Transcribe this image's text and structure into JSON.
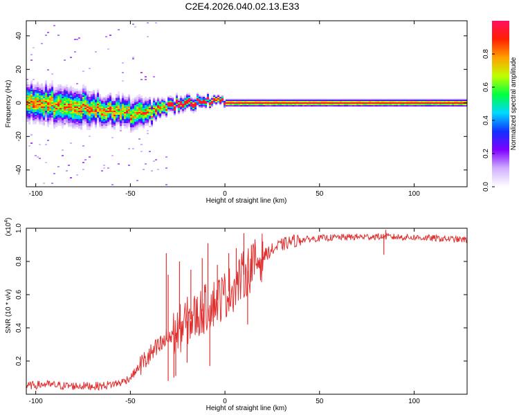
{
  "title": "C2E4.2026.040.02.13.E33",
  "chart_data": [
    {
      "type": "heatmap",
      "title": "C2E4.2026.040.02.13.E33",
      "xlabel": "Height of straight line (km)",
      "ylabel": "Frequency (Hz)",
      "xlim": [
        -105,
        128
      ],
      "ylim": [
        -50,
        49
      ],
      "xticks": [
        -100,
        -50,
        0,
        50,
        100
      ],
      "yticks": [
        -40,
        -20,
        0,
        20,
        40
      ],
      "xtick_labels": [
        "-100",
        "-50",
        "0",
        "50",
        "100"
      ],
      "ytick_labels": [
        "-40",
        "-20",
        "0",
        "20",
        "40"
      ],
      "colorbar": {
        "label": "Normalized spectral amplitude",
        "range": [
          0.0,
          1.0
        ],
        "ticks": [
          0.0,
          0.2,
          0.4,
          0.6,
          0.8
        ],
        "tick_labels": [
          "0.0",
          "0.2",
          "0.4",
          "0.6",
          "0.8"
        ],
        "colors": [
          "#ffffff",
          "#d0b0ff",
          "#8000ff",
          "#1030ff",
          "#00d8ff",
          "#00ff40",
          "#c0ff00",
          "#ffa000",
          "#ff2000",
          "#ff1060"
        ]
      },
      "ridge": {
        "x": [
          -105,
          -95,
          -85,
          -75,
          -65,
          -55,
          -45,
          -38,
          -30,
          -20,
          -10,
          0,
          10,
          20,
          50,
          80,
          128
        ],
        "frequency": [
          0,
          0,
          -2,
          -3,
          -4,
          -5,
          -7,
          -5,
          -2,
          0,
          1,
          0,
          0,
          0,
          0,
          0,
          0
        ],
        "spread": [
          5,
          5,
          5,
          5,
          4,
          4,
          4,
          3,
          2,
          2,
          1.5,
          1,
          1,
          1,
          1,
          1,
          1
        ]
      }
    },
    {
      "type": "line",
      "xlabel": "Height of straight line (km)",
      "ylabel": "SNR (10 * v/v)",
      "y_multiplier": "(x10",
      "y_multiplier_exp": "4",
      "xlim": [
        -105,
        128
      ],
      "ylim": [
        0,
        1.0
      ],
      "xticks": [
        -100,
        -50,
        0,
        50,
        100
      ],
      "yticks": [
        0.2,
        0.4,
        0.6,
        0.8,
        1.0
      ],
      "xtick_labels": [
        "-100",
        "-50",
        "0",
        "50",
        "100"
      ],
      "ytick_labels": [
        "0.2",
        "0.4",
        "0.6",
        "0.8",
        "1.0"
      ],
      "series": [
        {
          "name": "SNR",
          "color": "#e03030",
          "x": [
            -105,
            -95,
            -85,
            -75,
            -65,
            -55,
            -50,
            -45,
            -40,
            -35,
            -30,
            -25,
            -20,
            -15,
            -10,
            -5,
            0,
            5,
            10,
            15,
            20,
            25,
            30,
            35,
            40,
            50,
            60,
            80,
            100,
            128
          ],
          "y": [
            0.05,
            0.06,
            0.05,
            0.05,
            0.05,
            0.07,
            0.1,
            0.17,
            0.23,
            0.28,
            0.34,
            0.38,
            0.44,
            0.47,
            0.52,
            0.56,
            0.6,
            0.65,
            0.72,
            0.78,
            0.83,
            0.87,
            0.9,
            0.92,
            0.93,
            0.94,
            0.945,
            0.95,
            0.945,
            0.93
          ]
        }
      ],
      "spikes": [
        {
          "x": -31,
          "y": 0.85
        },
        {
          "x": -30,
          "y": 0.72
        },
        {
          "x": -24,
          "y": 0.8
        },
        {
          "x": -18,
          "y": 0.75
        },
        {
          "x": -12,
          "y": 0.82
        },
        {
          "x": -9,
          "y": 0.91
        },
        {
          "x": -4,
          "y": 0.78
        },
        {
          "x": 2,
          "y": 0.85
        },
        {
          "x": 6,
          "y": 0.88
        },
        {
          "x": 10,
          "y": 0.97
        },
        {
          "x": 14,
          "y": 0.9
        },
        {
          "x": 20,
          "y": 0.92
        },
        {
          "x": 85,
          "y": 0.99
        }
      ],
      "dips": [
        {
          "x": -30,
          "y": 0.08
        },
        {
          "x": -27,
          "y": 0.1
        },
        {
          "x": -26,
          "y": 0.11
        },
        {
          "x": -20,
          "y": 0.19
        },
        {
          "x": -8,
          "y": 0.17
        },
        {
          "x": 12,
          "y": 0.42
        },
        {
          "x": 84,
          "y": 0.84
        }
      ]
    }
  ]
}
